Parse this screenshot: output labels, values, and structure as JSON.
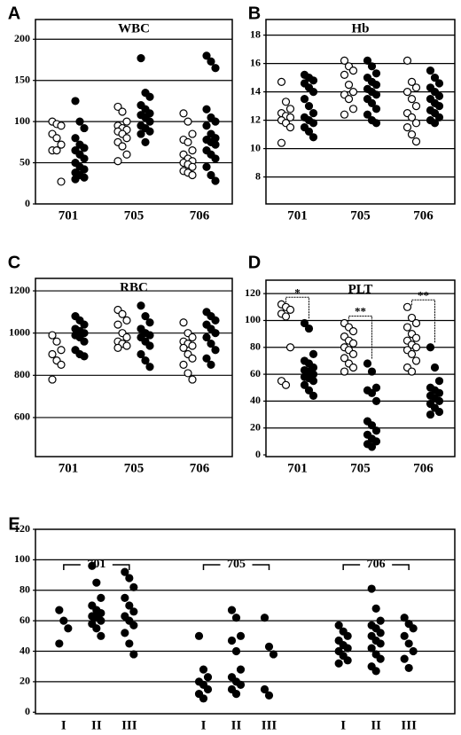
{
  "chart_data": [
    {
      "type": "strip",
      "label": "A",
      "title": "WBC",
      "categories": [
        "701",
        "705",
        "706"
      ],
      "series": [
        {
          "marker": "open",
          "color": "#000000",
          "values": [
            [
              100,
              97,
              95,
              85,
              80,
              72,
              65,
              65,
              27
            ],
            [
              118,
              112,
              100,
              95,
              92,
              90,
              88,
              85,
              80,
              75,
              70,
              60,
              52
            ],
            [
              110,
              100,
              85,
              78,
              75,
              65,
              60,
              55,
              52,
              50,
              48,
              45,
              40,
              38,
              35
            ]
          ]
        },
        {
          "marker": "filled",
          "color": "#000000",
          "values": [
            [
              125,
              100,
              92,
              80,
              72,
              68,
              65,
              60,
              55,
              50,
              45,
              42,
              38,
              35,
              32,
              30
            ],
            [
              177,
              135,
              130,
              120,
              115,
              110,
              108,
              105,
              100,
              95,
              92,
              88,
              85,
              75
            ],
            [
              180,
              173,
              165,
              115,
              105,
              100,
              95,
              85,
              80,
              78,
              75,
              72,
              65,
              60,
              55,
              45,
              35,
              28
            ]
          ]
        }
      ],
      "ylim": [
        0,
        224
      ],
      "yticks": [
        0,
        50,
        100,
        150,
        200
      ],
      "grid": true
    },
    {
      "type": "strip",
      "label": "B",
      "title": "Hb",
      "categories": [
        "701",
        "705",
        "706"
      ],
      "series": [
        {
          "marker": "open",
          "color": "#000000",
          "values": [
            [
              14.7,
              13.3,
              12.8,
              12.5,
              12.3,
              12.2,
              12.0,
              11.8,
              11.5,
              10.4
            ],
            [
              16.2,
              15.8,
              15.5,
              15.2,
              14.5,
              14.0,
              13.8,
              13.5,
              12.8,
              12.4
            ],
            [
              16.2,
              14.7,
              14.3,
              14.0,
              13.5,
              13.0,
              12.5,
              12.2,
              11.8,
              11.5,
              11.0,
              10.5
            ]
          ]
        },
        {
          "marker": "filled",
          "color": "#000000",
          "values": [
            [
              15.2,
              15.0,
              14.8,
              14.6,
              14.3,
              14.0,
              13.5,
              13.0,
              12.5,
              12.2,
              12.0,
              11.8,
              11.5,
              11.2,
              10.8
            ],
            [
              16.2,
              15.8,
              15.3,
              15.0,
              14.7,
              14.5,
              14.2,
              14.0,
              13.8,
              13.5,
              13.2,
              12.8,
              12.4,
              12.0,
              11.8
            ],
            [
              15.5,
              15.0,
              14.6,
              14.3,
              14.0,
              13.7,
              13.5,
              13.2,
              13.0,
              12.7,
              12.5,
              12.2,
              12.0,
              11.8
            ]
          ]
        }
      ],
      "ylim": [
        6.1,
        19.1
      ],
      "yticks": [
        8,
        10,
        12,
        14,
        16,
        18
      ],
      "grid": true
    },
    {
      "type": "strip",
      "label": "C",
      "title": "RBC",
      "categories": [
        "701",
        "705",
        "706"
      ],
      "series": [
        {
          "marker": "open",
          "color": "#000000",
          "values": [
            [
              990,
              960,
              920,
              900,
              870,
              850,
              780
            ],
            [
              1110,
              1090,
              1060,
              1040,
              1000,
              980,
              960,
              950,
              940,
              930
            ],
            [
              1050,
              1000,
              980,
              960,
              950,
              940,
              930,
              900,
              880,
              850,
              810,
              780
            ]
          ]
        },
        {
          "marker": "filled",
          "color": "#000000",
          "values": [
            [
              1080,
              1060,
              1040,
              1020,
              1010,
              1000,
              990,
              980,
              960,
              920,
              900,
              890
            ],
            [
              1130,
              1080,
              1050,
              1020,
              1000,
              990,
              980,
              960,
              940,
              900,
              870,
              840
            ],
            [
              1100,
              1080,
              1060,
              1040,
              1020,
              1000,
              980,
              950,
              920,
              880,
              850
            ]
          ]
        }
      ],
      "ylim": [
        415,
        1259
      ],
      "yticks": [
        600,
        800,
        1000,
        1200
      ],
      "grid": true
    },
    {
      "type": "strip",
      "label": "D",
      "title": "PLT",
      "categories": [
        "701",
        "705",
        "706"
      ],
      "series": [
        {
          "marker": "open",
          "color": "#000000",
          "values": [
            [
              112,
              110,
              108,
              105,
              103,
              80,
              55,
              52
            ],
            [
              98,
              95,
              92,
              88,
              85,
              83,
              80,
              78,
              75,
              72,
              68,
              65,
              62
            ],
            [
              110,
              102,
              98,
              95,
              90,
              87,
              85,
              82,
              80,
              78,
              75,
              70,
              65,
              62
            ]
          ]
        },
        {
          "marker": "filled",
          "color": "#000000",
          "values": [
            [
              98,
              94,
              75,
              70,
              68,
              65,
              63,
              62,
              60,
              58,
              57,
              55,
              52,
              48,
              44
            ],
            [
              68,
              62,
              50,
              48,
              46,
              40,
              25,
              22,
              18,
              15,
              12,
              10,
              8,
              6
            ],
            [
              80,
              65,
              55,
              50,
              48,
              46,
              44,
              42,
              40,
              38,
              35,
              32,
              30
            ]
          ]
        }
      ],
      "annotations": [
        "*",
        "**",
        "**"
      ],
      "ylim": [
        -1.3,
        130
      ],
      "yticks": [
        0,
        20,
        40,
        60,
        80,
        100,
        120
      ],
      "grid": true
    },
    {
      "type": "strip",
      "label": "E",
      "categories": [
        "I",
        "II",
        "III",
        "I",
        "II",
        "III",
        "I",
        "II",
        "III"
      ],
      "groups": [
        "701",
        "705",
        "706"
      ],
      "series": [
        {
          "marker": "filled",
          "color": "#000000",
          "values": [
            [
              67,
              60,
              55,
              45
            ],
            [
              96,
              85,
              75,
              70,
              67,
              65,
              63,
              62,
              60,
              58,
              55,
              50
            ],
            [
              92,
              88,
              82,
              75,
              70,
              66,
              63,
              60,
              57,
              52,
              45,
              38
            ],
            [
              50,
              28,
              23,
              20,
              18,
              15,
              12,
              9
            ],
            [
              67,
              62,
              50,
              47,
              40,
              28,
              23,
              20,
              18,
              15,
              12
            ],
            [
              62,
              43,
              38,
              15,
              11
            ],
            [
              57,
              53,
              50,
              47,
              44,
              42,
              40,
              37,
              34,
              32
            ],
            [
              81,
              68,
              60,
              57,
              55,
              52,
              50,
              47,
              45,
              42,
              38,
              35,
              30,
              27
            ],
            [
              62,
              58,
              55,
              50,
              45,
              40,
              35,
              29
            ]
          ]
        }
      ],
      "ylim": [
        -1,
        120
      ],
      "yticks": [
        0,
        20,
        40,
        60,
        80,
        100,
        120
      ],
      "grid": true
    }
  ]
}
